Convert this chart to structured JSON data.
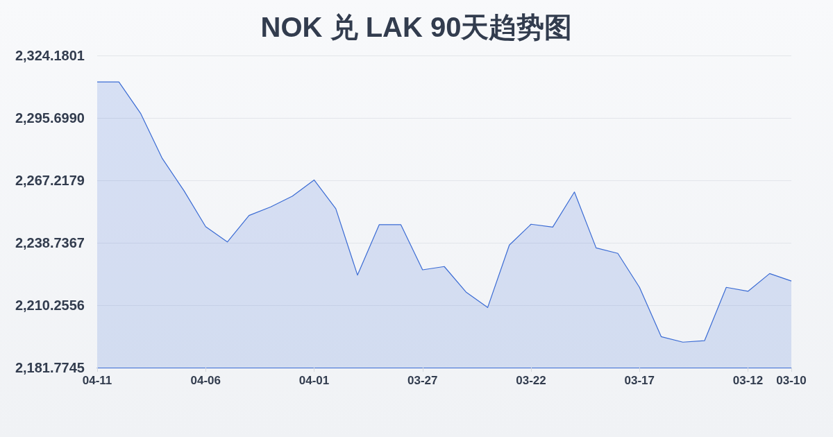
{
  "chart_data": {
    "type": "area",
    "title": "NOK 兑 LAK 90天趋势图",
    "categories": [
      "04-11",
      null,
      null,
      null,
      null,
      "04-06",
      null,
      null,
      null,
      null,
      "04-01",
      null,
      null,
      null,
      null,
      "03-27",
      null,
      null,
      null,
      null,
      "03-22",
      null,
      null,
      null,
      null,
      "03-17",
      null,
      null,
      null,
      null,
      "03-12",
      null,
      "03-10"
    ],
    "values": [
      2312.1,
      2312.1,
      2297.8,
      2277.2,
      2262.5,
      2246.1,
      2239.1,
      2251.2,
      2255.1,
      2260.0,
      2267.4,
      2254.3,
      2224.0,
      2247.0,
      2247.0,
      2226.4,
      2227.9,
      2216.3,
      2209.2,
      2237.7,
      2247.2,
      2245.9,
      2261.9,
      2236.4,
      2233.9,
      2218.4,
      2195.9,
      2193.4,
      2194.1,
      2218.4,
      2216.6,
      2224.7,
      2221.3
    ],
    "color": "#3a6bd4",
    "ylim": [
      2181.7745,
      2324.1801
    ],
    "yticks": [
      {
        "value": 2181.7745,
        "label": "2,181.7745"
      },
      {
        "value": 2210.2556,
        "label": "2,210.2556"
      },
      {
        "value": 2238.7367,
        "label": "2,238.7367"
      },
      {
        "value": 2267.2179,
        "label": "2,267.2179"
      },
      {
        "value": 2295.699,
        "label": "2,295.6990"
      },
      {
        "value": 2324.1801,
        "label": "2,324.1801"
      }
    ],
    "grid": "y",
    "marker": "none"
  }
}
